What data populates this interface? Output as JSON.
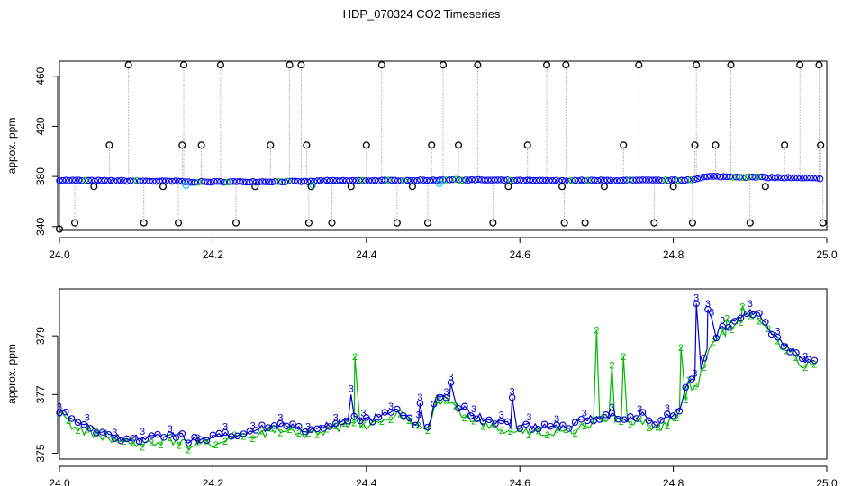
{
  "title": "HDP_070324  CO2 Timeseries",
  "chart_data": [
    {
      "type": "scatter",
      "ylabel": "appox. ppm",
      "xlim": [
        24.0,
        25.0
      ],
      "ylim": [
        337,
        472
      ],
      "xticks": [
        24.0,
        24.2,
        24.4,
        24.6,
        24.8,
        25.0
      ],
      "xtick_labels": [
        "24.0",
        "24.2",
        "24.4",
        "24.6",
        "24.8",
        "25.0"
      ],
      "yticks": [
        340,
        380,
        420,
        460
      ],
      "ytick_labels": [
        "340",
        "380",
        "420",
        "460"
      ],
      "colors": {
        "main": "#0000ff",
        "alt": "#00bb00",
        "cyan": "#00c8ff",
        "outlier": "#000000",
        "line": "#999999"
      },
      "baseline": {
        "x": [
          24.0,
          24.16,
          24.168,
          24.33,
          24.34,
          24.49,
          24.5,
          24.66,
          24.67,
          24.81,
          24.83,
          24.84,
          24.85,
          24.9,
          24.99
        ],
        "y": [
          377,
          376,
          375.6,
          376,
          376.5,
          377,
          377.5,
          376.5,
          376.8,
          377,
          378,
          379.5,
          380,
          379.5,
          378.5
        ]
      },
      "outliers_x": [
        24.0,
        24.02,
        24.045,
        24.065,
        24.09,
        24.11,
        24.135,
        24.155,
        24.16,
        24.162,
        24.185,
        24.21,
        24.23,
        24.255,
        24.275,
        24.3,
        24.315,
        24.322,
        24.325,
        24.328,
        24.355,
        24.38,
        24.4,
        24.42,
        24.44,
        24.46,
        24.48,
        24.485,
        24.5,
        24.52,
        24.545,
        24.565,
        24.585,
        24.61,
        24.635,
        24.655,
        24.658,
        24.66,
        24.685,
        24.71,
        24.735,
        24.755,
        24.775,
        24.8,
        24.825,
        24.828,
        24.83,
        24.855,
        24.875,
        24.9,
        24.92,
        24.945,
        24.965,
        24.99,
        24.992,
        24.995
      ],
      "outliers_y": [
        338,
        343,
        372,
        405,
        469,
        343,
        372,
        343,
        405,
        469,
        405,
        469,
        343,
        372,
        405,
        469,
        469,
        405,
        343,
        372,
        343,
        372,
        405,
        469,
        343,
        372,
        343,
        405,
        469,
        405,
        469,
        343,
        372,
        405,
        469,
        372,
        343,
        469,
        343,
        372,
        405,
        469,
        343,
        372,
        343,
        405,
        469,
        405,
        469,
        343,
        372,
        405,
        469,
        469,
        405,
        343
      ]
    },
    {
      "type": "line",
      "ylabel": "approx. ppm",
      "xlim": [
        24.0,
        25.0
      ],
      "ylim": [
        374.8,
        380.6
      ],
      "xticks": [
        24.0,
        24.2,
        24.4,
        24.6,
        24.8,
        25.0
      ],
      "xtick_labels": [
        "24.0",
        "24.2",
        "24.4",
        "24.6",
        "24.8",
        "25.0"
      ],
      "yticks": [
        375,
        377,
        379
      ],
      "ytick_labels": [
        "375",
        "377",
        "379"
      ],
      "markers": {
        "primary": "o",
        "series3": "3",
        "series2": "2"
      },
      "colors": {
        "series3": "#0000cc",
        "series2": "#00bb00"
      },
      "series_a": {
        "x": [
          24.0,
          24.02,
          24.05,
          24.08,
          24.11,
          24.14,
          24.16,
          24.168,
          24.2,
          24.25,
          24.28,
          24.3,
          24.32,
          24.34,
          24.36,
          24.38,
          24.4,
          24.42,
          24.44,
          24.46,
          24.48,
          24.49,
          24.5,
          24.52,
          24.55,
          24.58,
          24.62,
          24.66,
          24.68,
          24.7,
          24.72,
          24.74,
          24.76,
          24.78,
          24.8,
          24.81,
          24.82,
          24.83,
          24.84,
          24.85,
          24.86,
          24.88,
          24.9,
          24.91,
          24.93,
          24.95,
          24.97,
          24.985
        ],
        "y": [
          376.5,
          376.0,
          375.8,
          375.5,
          375.5,
          375.6,
          375.6,
          375.4,
          375.5,
          375.8,
          375.9,
          376.0,
          375.8,
          375.9,
          376.0,
          376.2,
          376.1,
          376.3,
          376.5,
          376.1,
          375.9,
          376.8,
          377.1,
          376.6,
          376.2,
          376.0,
          375.9,
          375.9,
          376.1,
          376.2,
          376.3,
          376.2,
          376.3,
          376.0,
          376.4,
          376.6,
          377.5,
          377.4,
          378.2,
          378.8,
          379.2,
          379.5,
          379.8,
          379.8,
          379.1,
          378.6,
          378.2,
          378.1
        ]
      },
      "spikes_series3": {
        "x": [
          24.38,
          24.47,
          24.51,
          24.59,
          24.83,
          24.845,
          24.85
        ],
        "y": [
          377.0,
          376.7,
          377.4,
          376.9,
          380.1,
          379.9,
          379.6
        ]
      },
      "spikes_series2": {
        "x": [
          24.385,
          24.7,
          24.72,
          24.735,
          24.81,
          24.82,
          24.87,
          24.89
        ],
        "y": [
          378.3,
          379.2,
          378.0,
          378.3,
          378.6,
          377.5,
          379.6,
          380.0
        ]
      }
    }
  ]
}
